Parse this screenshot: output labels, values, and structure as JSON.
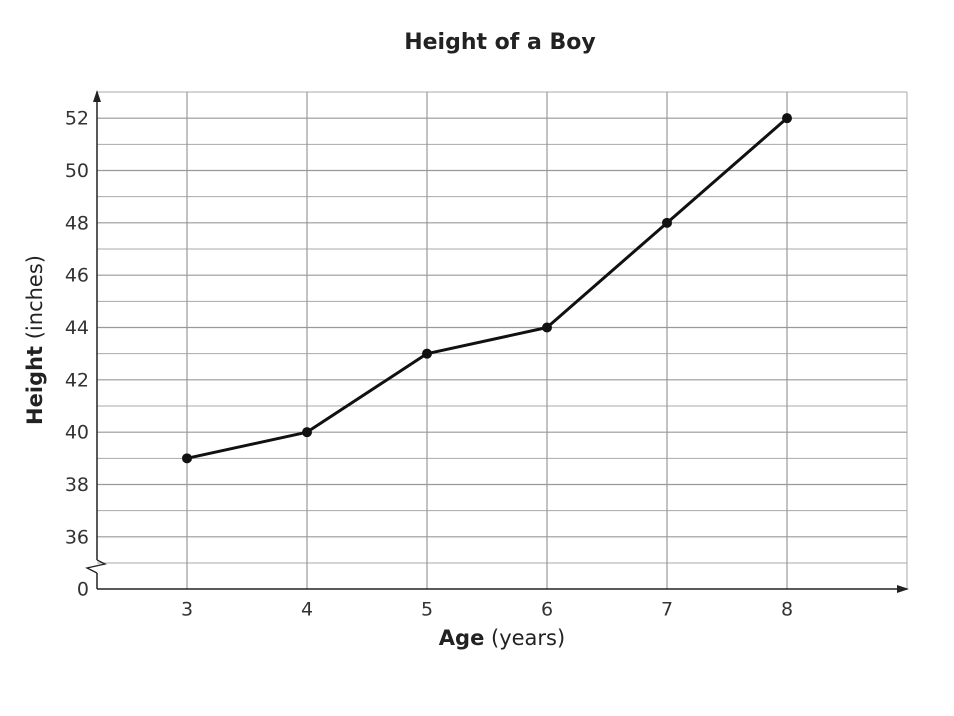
{
  "chart_data": {
    "type": "line",
    "title": "Height of a Boy",
    "xlabel": {
      "bold": "Age",
      "rest": "(years)"
    },
    "ylabel": {
      "bold": "Height",
      "rest": "(inches)"
    },
    "x": [
      3,
      4,
      5,
      6,
      7,
      8
    ],
    "series": [
      {
        "name": "Height",
        "color": "#111111",
        "values": [
          39,
          40,
          43,
          44,
          48,
          52
        ]
      }
    ],
    "xlim": [
      2.25,
      9
    ],
    "xticks": [
      3,
      4,
      5,
      6,
      7,
      8
    ],
    "ylim": [
      0,
      53
    ],
    "yticks": [
      0,
      36,
      38,
      40,
      42,
      44,
      46,
      48,
      50,
      52
    ],
    "y_break": [
      0,
      36
    ],
    "grid": true
  }
}
